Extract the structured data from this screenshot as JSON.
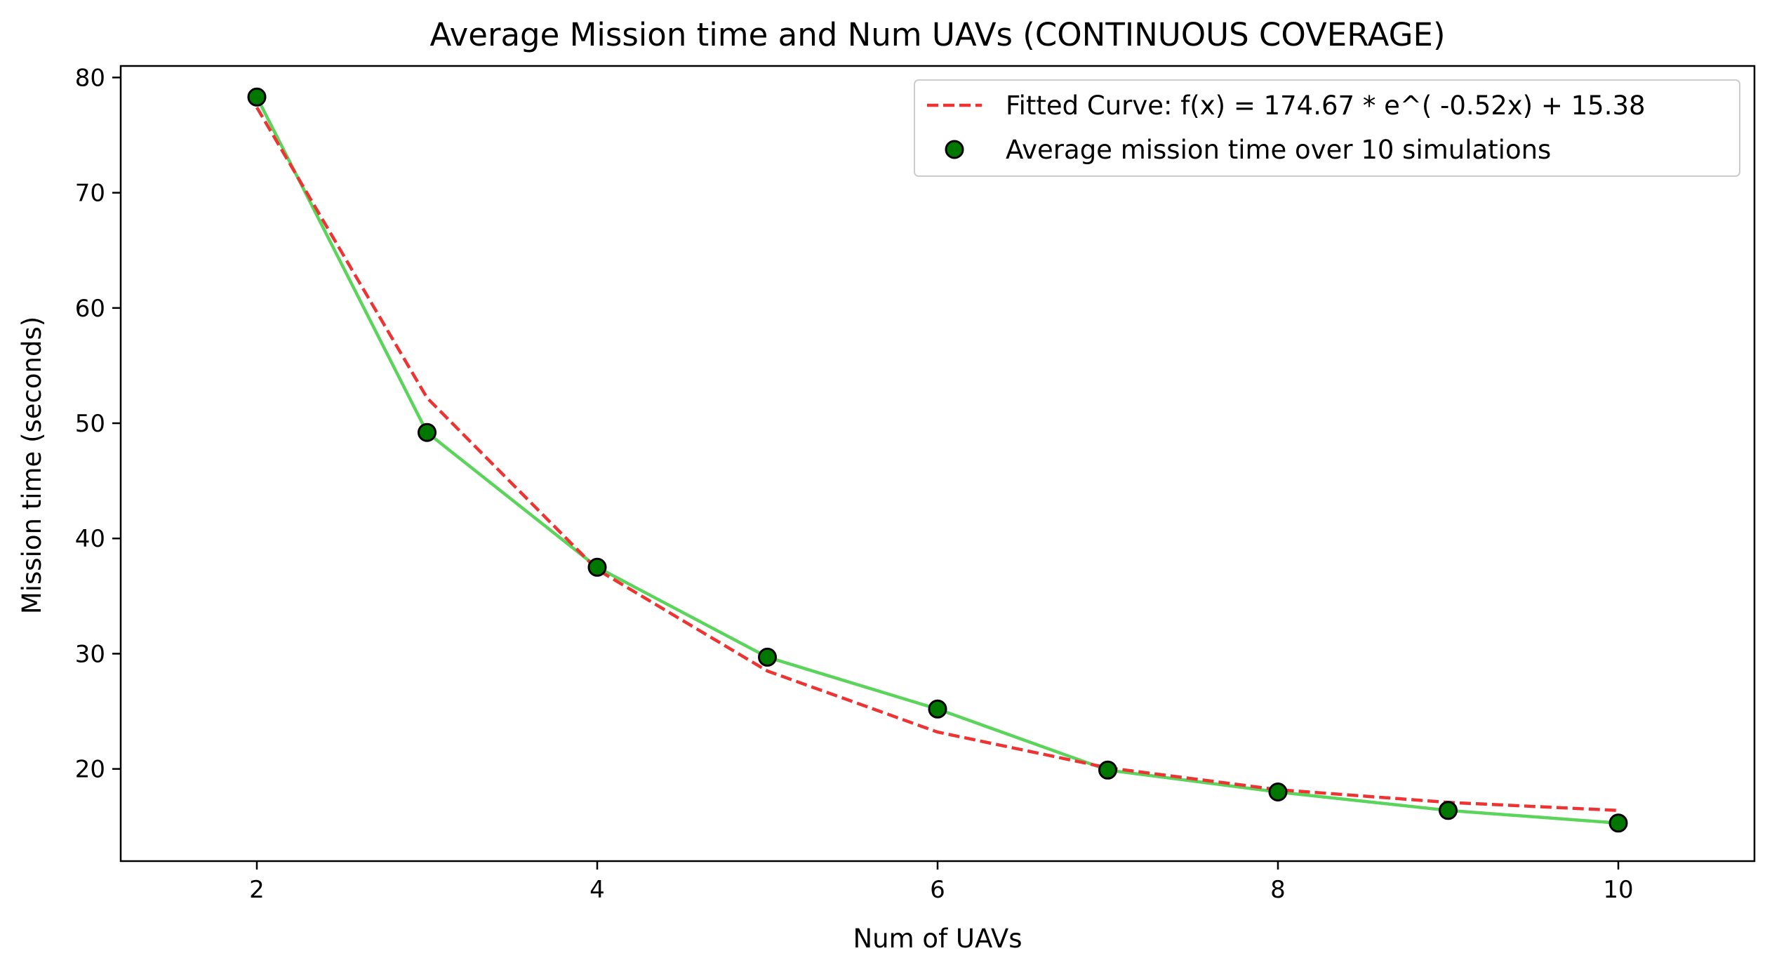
{
  "chart_data": {
    "type": "line",
    "title": "Average Mission time and Num UAVs (CONTINUOUS COVERAGE)",
    "xlabel": "Num of UAVs",
    "ylabel": "Mission time (seconds)",
    "xlim": [
      1.2,
      10.8
    ],
    "ylim": [
      12.0,
      81.0
    ],
    "xticks": [
      2,
      4,
      6,
      8,
      10
    ],
    "yticks": [
      20,
      30,
      40,
      50,
      60,
      70,
      80
    ],
    "grid": false,
    "legend_position": "top-right",
    "x": [
      2,
      3,
      4,
      5,
      6,
      7,
      8,
      9,
      10
    ],
    "series": [
      {
        "kind": "line",
        "style": "solid",
        "color": "#5ad45a",
        "values": [
          78.3,
          49.2,
          37.5,
          29.7,
          25.2,
          19.9,
          18.0,
          16.4,
          15.3
        ]
      },
      {
        "kind": "line",
        "style": "dashed",
        "color": "#ee3333",
        "name": "Fitted Curve: f(x) = 174.67 * e^( -0.52x) + 15.38",
        "values": [
          77.4,
          52.2,
          37.3,
          28.5,
          23.2,
          20.1,
          18.2,
          17.1,
          16.4
        ]
      },
      {
        "kind": "scatter",
        "color": "#007800",
        "edge_color": "#000000",
        "name": "Average mission time over 10 simulations",
        "values": [
          78.3,
          49.2,
          37.5,
          29.7,
          25.2,
          19.9,
          18.0,
          16.4,
          15.3
        ]
      }
    ]
  }
}
